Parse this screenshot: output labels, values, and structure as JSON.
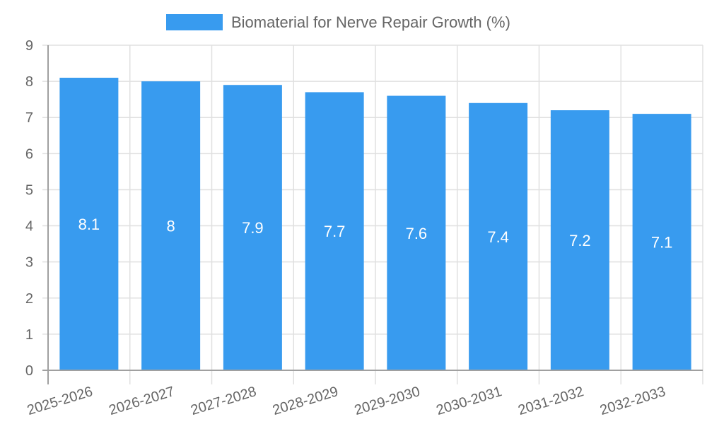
{
  "legend": {
    "label": "Biomaterial for Nerve Repair Growth (%)",
    "color": "#389BEF"
  },
  "colors": {
    "bar": "#389BEF",
    "grid": "#e0e0e0",
    "axis": "#a0a0a0",
    "text": "#666666",
    "bar_label": "#ffffff"
  },
  "chart_data": {
    "type": "bar",
    "title": "",
    "xlabel": "",
    "ylabel": "",
    "categories": [
      "2025-2026",
      "2026-2027",
      "2027-2028",
      "2028-2029",
      "2029-2030",
      "2030-2031",
      "2031-2032",
      "2032-2033"
    ],
    "series": [
      {
        "name": "Biomaterial for Nerve Repair Growth (%)",
        "values": [
          8.1,
          8,
          7.9,
          7.7,
          7.6,
          7.4,
          7.2,
          7.1
        ]
      }
    ],
    "data_labels": [
      "8.1",
      "8",
      "7.9",
      "7.7",
      "7.6",
      "7.4",
      "7.2",
      "7.1"
    ],
    "ylim": [
      0,
      9
    ],
    "yticks": [
      0,
      1,
      2,
      3,
      4,
      5,
      6,
      7,
      8,
      9
    ],
    "grid": true,
    "legend_position": "top"
  }
}
